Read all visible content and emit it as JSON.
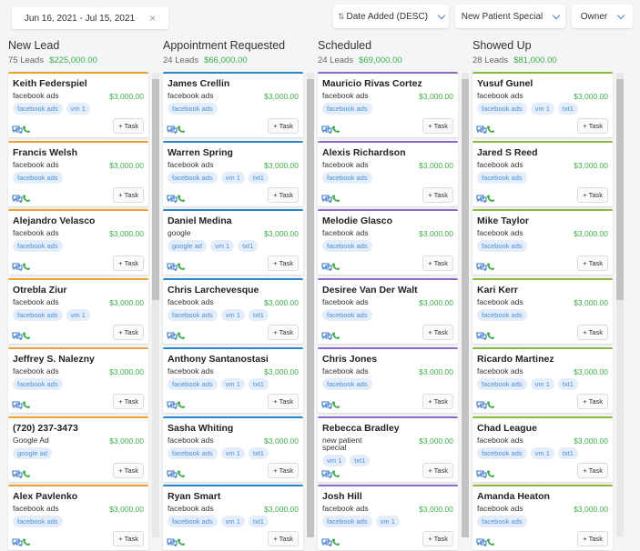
{
  "filters": {
    "date_range": "Jun 16, 2021 - Jul 15, 2021",
    "sort": "Date Added (DESC)",
    "pipeline": "New Patient Special",
    "owner": "Owner"
  },
  "card_action": "+ Task",
  "columns": [
    {
      "title": "New Lead",
      "count": "75 Leads",
      "amount": "$225,000.00",
      "color": "#f0a030",
      "cards": [
        {
          "name": "Keith Federspiel",
          "source": "facebook ads",
          "value": "$3,000.00",
          "tags": [
            "facebook ads",
            "vm 1"
          ]
        },
        {
          "name": "Francis Welsh",
          "source": "facebook ads",
          "value": "$3,000.00",
          "tags": [
            "facebook ads"
          ]
        },
        {
          "name": "Alejandro Velasco",
          "source": "facebook ads",
          "value": "$3,000.00",
          "tags": [
            "facebook ads"
          ]
        },
        {
          "name": "Otrebla Ziur",
          "source": "facebook ads",
          "value": "$3,000.00",
          "tags": [
            "facebook ads",
            "vm 1"
          ]
        },
        {
          "name": "Jeffrey S. Nalezny",
          "source": "facebook ads",
          "value": "$3,000.00",
          "tags": [
            "facebook ads"
          ]
        },
        {
          "name": "(720) 237-3473",
          "source": "Google Ad",
          "value": "$3,000.00",
          "tags": [
            "google ad"
          ]
        },
        {
          "name": "Alex Pavlenko",
          "source": "facebook ads",
          "value": "$3,000.00",
          "tags": [
            "facebook ads"
          ]
        }
      ]
    },
    {
      "title": "Appointment Requested",
      "count": "24 Leads",
      "amount": "$66,000.00",
      "color": "#2a86c8",
      "cards": [
        {
          "name": "James Crellin",
          "source": "facebook ads",
          "value": "$3,000.00",
          "tags": [
            "facebook ads"
          ]
        },
        {
          "name": "Warren Spring",
          "source": "facebook ads",
          "value": "$3,000.00",
          "tags": [
            "facebook ads",
            "vm 1",
            "txt1"
          ]
        },
        {
          "name": "Daniel Medina",
          "source": "google",
          "value": "$3,000.00",
          "tags": [
            "google ad",
            "vm 1",
            "txt1"
          ]
        },
        {
          "name": "Chris Larchevesque",
          "source": "facebook ads",
          "value": "$3,000.00",
          "tags": [
            "facebook ads",
            "vm 1",
            "txt1"
          ]
        },
        {
          "name": "Anthony Santanostasi",
          "source": "facebook ads",
          "value": "$3,000.00",
          "tags": [
            "facebook ads",
            "vm 1",
            "txt1"
          ]
        },
        {
          "name": "Sasha Whiting",
          "source": "facebook ads",
          "value": "$3,000.00",
          "tags": [
            "facebook ads",
            "vm 1",
            "txt1"
          ]
        },
        {
          "name": "Ryan Smart",
          "source": "facebook ads",
          "value": "$3,000.00",
          "tags": [
            "facebook ads",
            "vm 1",
            "txt1"
          ]
        }
      ]
    },
    {
      "title": "Scheduled",
      "count": "24 Leads",
      "amount": "$69,000.00",
      "color": "#8a6cc8",
      "cards": [
        {
          "name": "Mauricio Rivas Cortez",
          "source": "facebook ads",
          "value": "$3,000.00",
          "tags": [
            "facebook ads"
          ]
        },
        {
          "name": "Alexis Richardson",
          "source": "facebook ads",
          "value": "$3,000.00",
          "tags": [
            "facebook ads"
          ]
        },
        {
          "name": "Melodie Glasco",
          "source": "facebook ads",
          "value": "$3,000.00",
          "tags": [
            "facebook ads"
          ]
        },
        {
          "name": "Desiree Van Der Walt",
          "source": "facebook ads",
          "value": "$3,000.00",
          "tags": [
            "facebook ads"
          ]
        },
        {
          "name": "Chris Jones",
          "source": "facebook ads",
          "value": "$3,000.00",
          "tags": [
            "facebook ads"
          ]
        },
        {
          "name": "Rebecca Bradley",
          "source": "new patient special",
          "value": "$3,000.00",
          "tags": [
            "vm 1",
            "txt1"
          ]
        },
        {
          "name": "Josh Hill",
          "source": "facebook ads",
          "value": "$3,000.00",
          "tags": [
            "facebook ads",
            "vm 1"
          ]
        }
      ]
    },
    {
      "title": "Showed Up",
      "count": "28 Leads",
      "amount": "$81,000.00",
      "color": "#8cb83c",
      "cards": [
        {
          "name": "Yusuf Gunel",
          "source": "facebook ads",
          "value": "$3,000.00",
          "tags": [
            "facebook ads",
            "vm 1",
            "txt1"
          ]
        },
        {
          "name": "Jared S Reed",
          "source": "facebook ads",
          "value": "$3,000.00",
          "tags": [
            "facebook ads"
          ]
        },
        {
          "name": "Mike Taylor",
          "source": "facebook ads",
          "value": "$3,000.00",
          "tags": [
            "facebook ads"
          ]
        },
        {
          "name": "Kari Kerr",
          "source": "facebook ads",
          "value": "$3,000.00",
          "tags": [
            "facebook ads"
          ]
        },
        {
          "name": "Ricardo Martinez",
          "source": "facebook ads",
          "value": "$3,000.00",
          "tags": [
            "facebook ads",
            "vm 1",
            "txt1"
          ]
        },
        {
          "name": "Chad League",
          "source": "facebook ads",
          "value": "$3,000.00",
          "tags": [
            "facebook ads",
            "vm 1",
            "txt1"
          ]
        },
        {
          "name": "Amanda Heaton",
          "source": "facebook ads",
          "value": "$3,000.00",
          "tags": [
            "facebook ads"
          ]
        }
      ]
    }
  ]
}
